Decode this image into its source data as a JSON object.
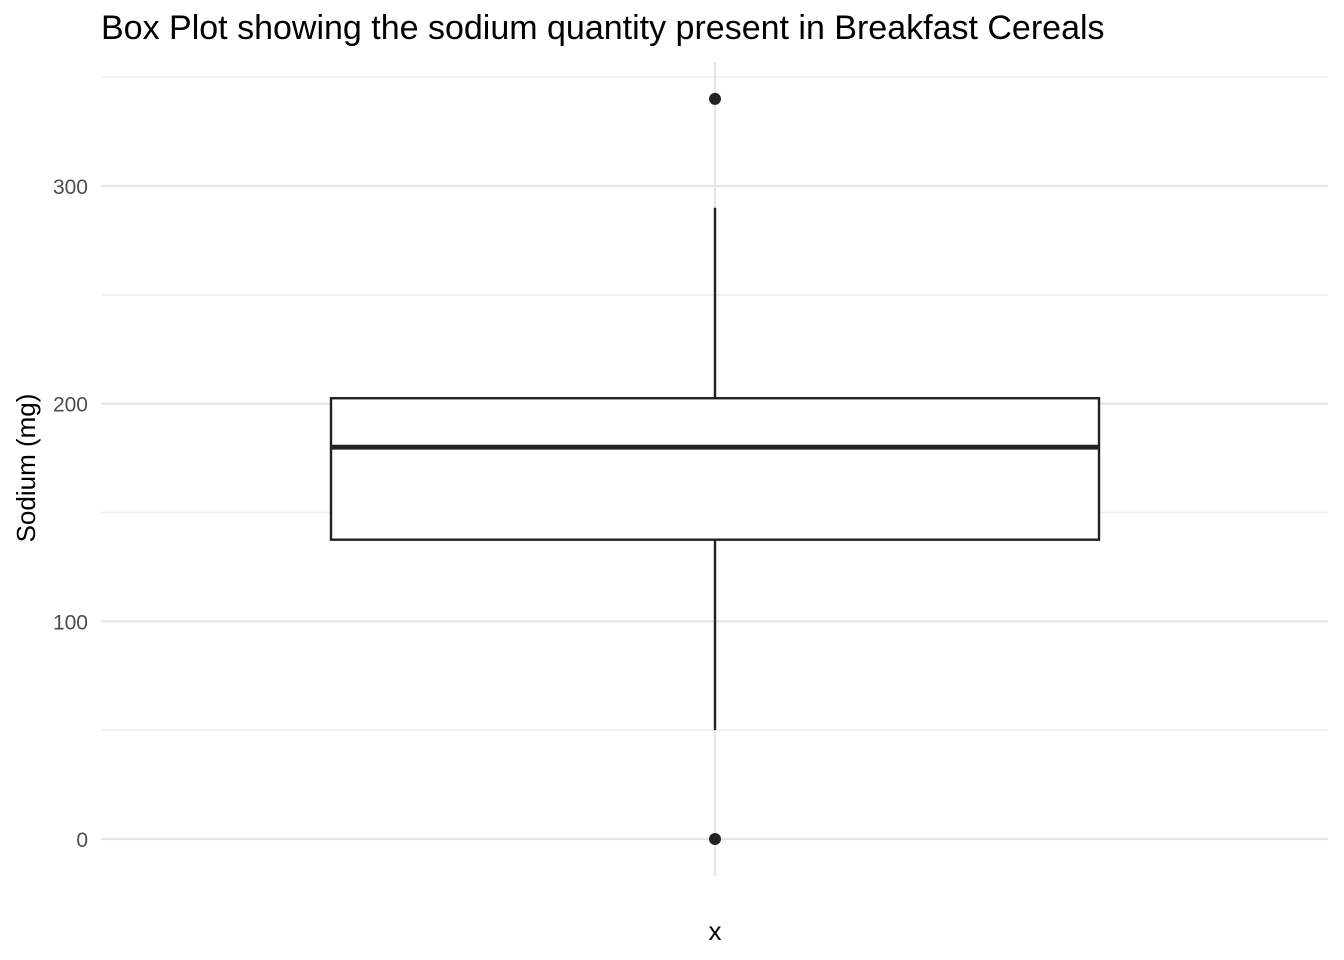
{
  "chart_data": {
    "type": "box",
    "title": "Box Plot showing the sodium quantity present in Breakfast Cereals",
    "xlabel": "x",
    "ylabel": "Sodium (mg)",
    "ylim": [
      -17,
      357
    ],
    "yticks": [
      0,
      100,
      200,
      300
    ],
    "ytick_labels": [
      "0",
      "100",
      "200",
      "300"
    ],
    "grid": true,
    "stats": {
      "min_whisker": 50,
      "q1": 137.5,
      "median": 180,
      "q3": 202.5,
      "max_whisker": 290
    },
    "outliers": [
      0,
      340
    ],
    "colors": {
      "box_fill": "#ffffff",
      "box_stroke": "#222222",
      "grid": "#e5e5e5",
      "tick_text": "#4d4d4d"
    }
  }
}
